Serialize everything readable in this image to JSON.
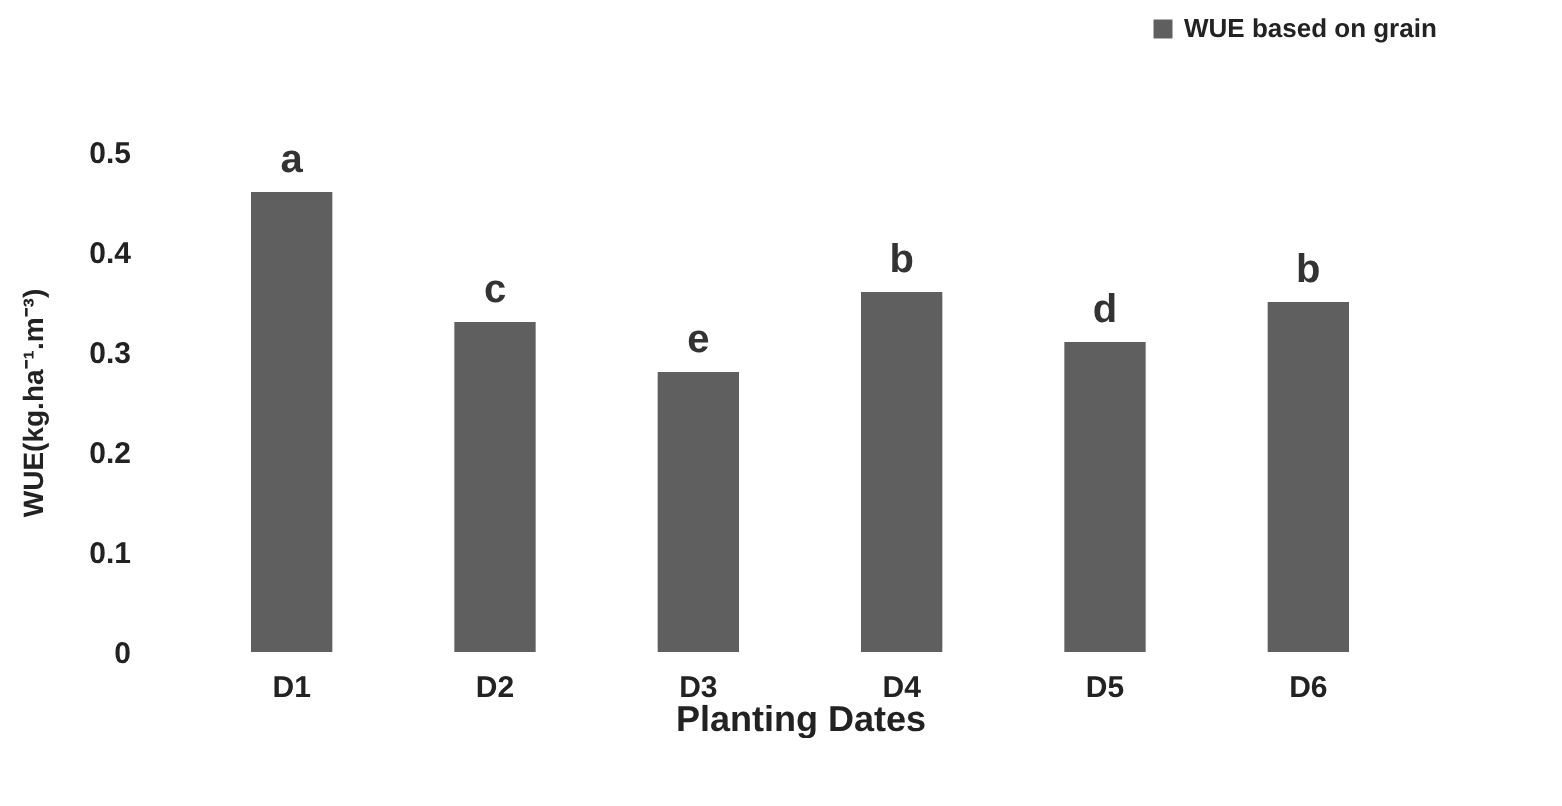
{
  "chart_data": {
    "type": "bar",
    "xlabel": "Planting Dates",
    "ylabel": "WUE(kg.ha⁻¹.m⁻³)",
    "categories": [
      "D1",
      "D2",
      "D3",
      "D4",
      "D5",
      "D6"
    ],
    "series": [
      {
        "name": "WUE based on grain",
        "color": "#5f5f5f",
        "values": [
          0.46,
          0.33,
          0.28,
          0.36,
          0.31,
          0.35
        ]
      }
    ],
    "ylim": [
      0,
      0.5
    ],
    "yticks": [
      {
        "value": 0,
        "label": "0"
      },
      0.1,
      0.2,
      0.3,
      0.4,
      0.5
    ],
    "grid": false,
    "legend": "top right",
    "annotations": [
      {
        "text": "a",
        "x": "D1",
        "y": 0.46
      },
      {
        "text": "c",
        "x": "D2",
        "y": 0.33
      },
      {
        "text": "e",
        "x": "D3",
        "y": 0.28
      },
      {
        "text": "b",
        "x": "D4",
        "y": 0.36
      },
      {
        "text": "d",
        "x": "D5",
        "y": 0.31
      },
      {
        "text": "b",
        "x": "D6",
        "y": 0.35
      }
    ]
  }
}
